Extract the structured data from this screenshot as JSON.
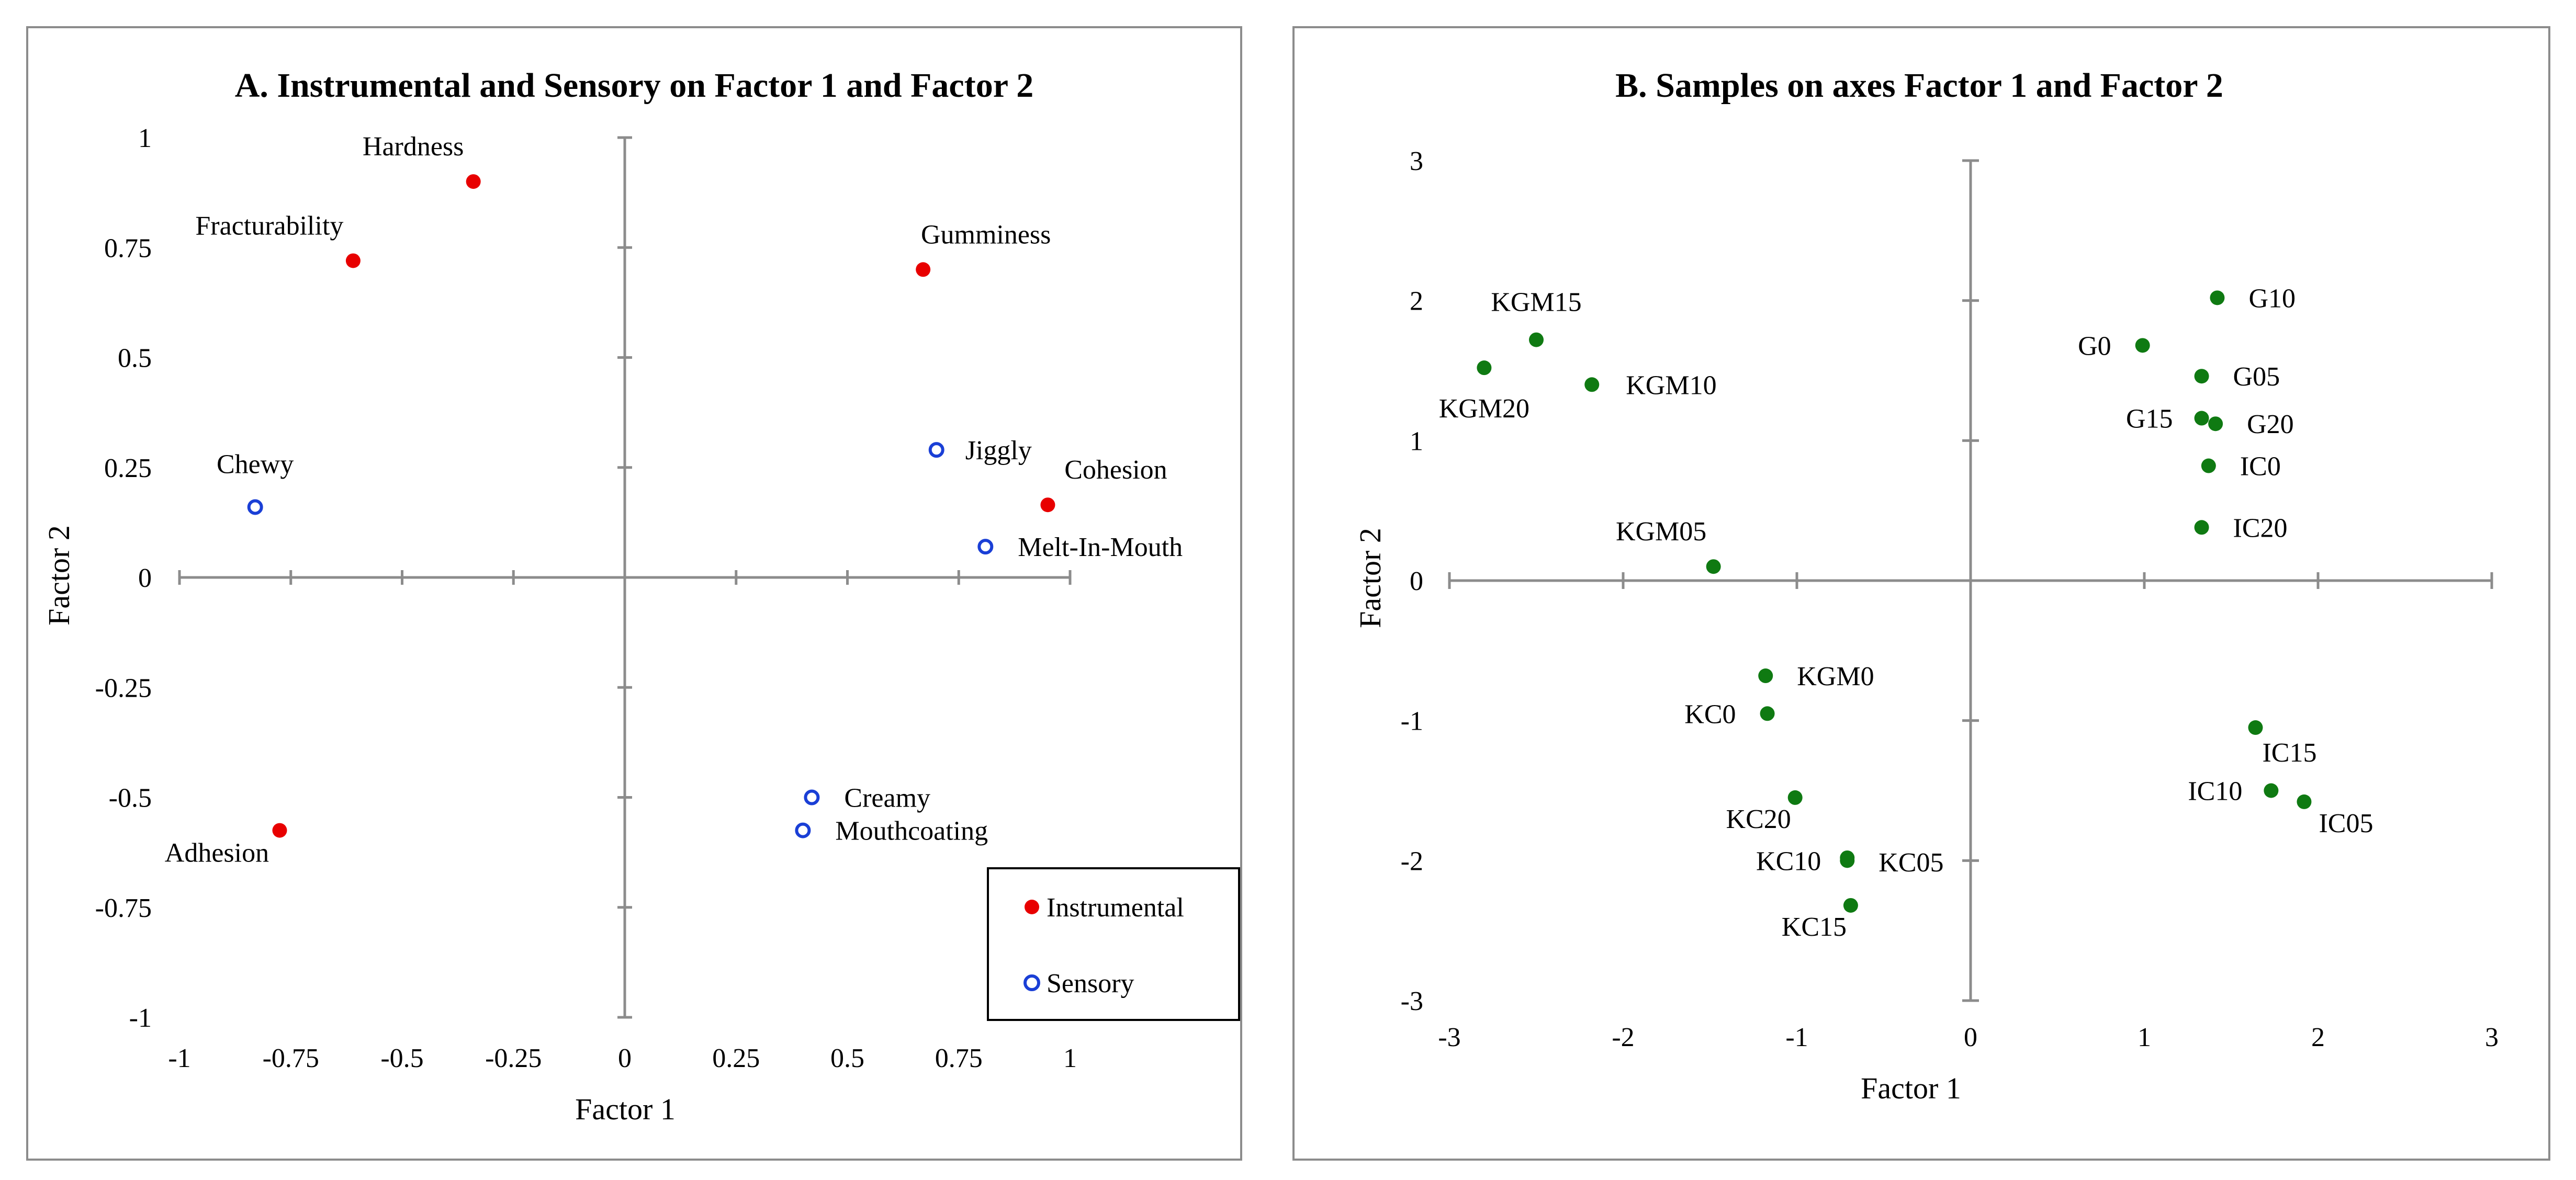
{
  "colors": {
    "instrumental": "#e80000",
    "sensory": "#1a3fd6",
    "samples": "#0f7a12",
    "axis": "#8c8c8c",
    "frame": "#8c8c8c"
  },
  "chart_data": [
    {
      "type": "scatter",
      "title": "A. Instrumental and Sensory on Factor 1 and Factor 2",
      "xlabel": "Factor 1",
      "ylabel": "Factor 2",
      "xlim": [
        -1,
        1
      ],
      "ylim": [
        -1,
        1
      ],
      "x_ticks": [
        "-1",
        "-0.75",
        "-0.5",
        "-0.25",
        "0",
        "0.25",
        "0.5",
        "0.75",
        "1"
      ],
      "y_ticks": [
        "-1",
        "-0.75",
        "-0.5",
        "-0.25",
        "0",
        "0.25",
        "0.5",
        "0.75",
        "1"
      ],
      "legend": {
        "position": "bottom-right",
        "instrumental": "Instrumental",
        "sensory": "Sensory"
      },
      "series": [
        {
          "name": "Instrumental",
          "points": [
            {
              "label": "Hardness",
              "x": -0.34,
              "y": 0.9
            },
            {
              "label": "Fracturability",
              "x": -0.61,
              "y": 0.72
            },
            {
              "label": "Gumminess",
              "x": 0.67,
              "y": 0.7
            },
            {
              "label": "Cohesion",
              "x": 0.95,
              "y": 0.165
            },
            {
              "label": "Adhesion",
              "x": -0.775,
              "y": -0.575
            }
          ]
        },
        {
          "name": "Sensory",
          "points": [
            {
              "label": "Chewy",
              "x": -0.83,
              "y": 0.16
            },
            {
              "label": "Jiggly",
              "x": 0.7,
              "y": 0.29
            },
            {
              "label": "Melt-In-Mouth",
              "x": 0.81,
              "y": 0.07
            },
            {
              "label": "Creamy",
              "x": 0.42,
              "y": -0.5
            },
            {
              "label": "Mouthcoating",
              "x": 0.4,
              "y": -0.575
            }
          ]
        }
      ]
    },
    {
      "type": "scatter",
      "title": "B. Samples on axes Factor 1 and Factor 2",
      "xlabel": "Factor 1",
      "ylabel": "Factor 2",
      "xlim": [
        -3,
        3
      ],
      "ylim": [
        -3,
        3
      ],
      "x_ticks": [
        "-3",
        "-2",
        "-1",
        "0",
        "1",
        "2",
        "3"
      ],
      "y_ticks": [
        "-3",
        "-2",
        "-1",
        "0",
        "1",
        "2",
        "3"
      ],
      "series": [
        {
          "name": "Samples",
          "points": [
            {
              "label": "KGM15",
              "x": -2.5,
              "y": 1.72
            },
            {
              "label": "KGM20",
              "x": -2.8,
              "y": 1.52
            },
            {
              "label": "KGM10",
              "x": -2.18,
              "y": 1.4
            },
            {
              "label": "KGM05",
              "x": -1.48,
              "y": 0.1
            },
            {
              "label": "KGM0",
              "x": -1.18,
              "y": -0.68
            },
            {
              "label": "KC0",
              "x": -1.17,
              "y": -0.95
            },
            {
              "label": "KC20",
              "x": -1.01,
              "y": -1.55
            },
            {
              "label": "KC10",
              "x": -0.71,
              "y": -2.0
            },
            {
              "label": "KC05",
              "x": -0.71,
              "y": -1.98
            },
            {
              "label": "KC15",
              "x": -0.69,
              "y": -2.32
            },
            {
              "label": "G10",
              "x": 1.42,
              "y": 2.02
            },
            {
              "label": "G0",
              "x": 0.99,
              "y": 1.68
            },
            {
              "label": "G05",
              "x": 1.33,
              "y": 1.46
            },
            {
              "label": "G15",
              "x": 1.33,
              "y": 1.16
            },
            {
              "label": "G20",
              "x": 1.41,
              "y": 1.12
            },
            {
              "label": "IC0",
              "x": 1.37,
              "y": 0.82
            },
            {
              "label": "IC20",
              "x": 1.33,
              "y": 0.38
            },
            {
              "label": "IC15",
              "x": 1.64,
              "y": -1.05
            },
            {
              "label": "IC10",
              "x": 1.73,
              "y": -1.5
            },
            {
              "label": "IC05",
              "x": 1.92,
              "y": -1.58
            }
          ]
        }
      ]
    }
  ]
}
